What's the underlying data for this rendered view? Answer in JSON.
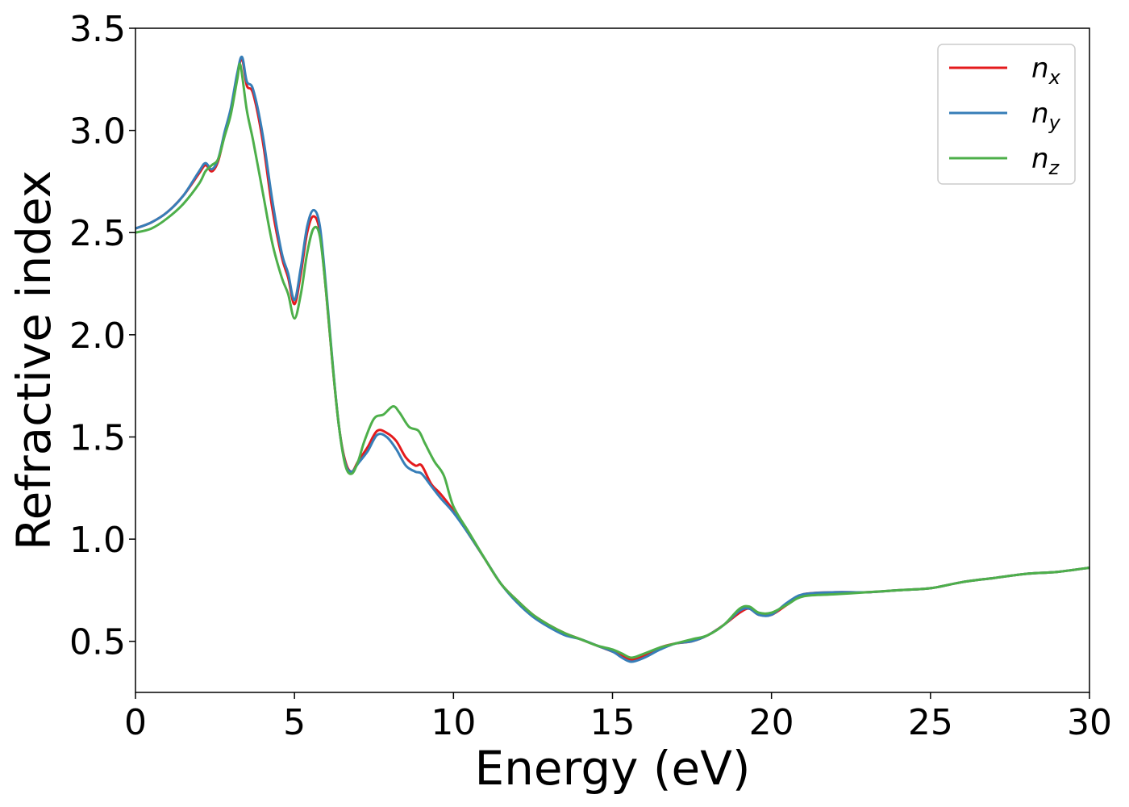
{
  "chart_data": {
    "type": "line",
    "xlabel": "Energy (eV)",
    "ylabel": "Refractive index",
    "xlim": [
      0,
      30
    ],
    "ylim": [
      0.25,
      3.5
    ],
    "xticks": [
      "0",
      "5",
      "10",
      "15",
      "20",
      "25",
      "30"
    ],
    "yticks": [
      "0.5",
      "1.0",
      "1.5",
      "2.0",
      "2.5",
      "3.0",
      "3.5"
    ],
    "grid": false,
    "legend_position": "top-right",
    "series": [
      {
        "name": "n_x",
        "legend": {
          "base": "n",
          "sub": "x"
        },
        "color": "#e41a1c",
        "x": [
          0,
          0.5,
          1.0,
          1.5,
          2.0,
          2.2,
          2.4,
          2.6,
          2.8,
          3.0,
          3.2,
          3.35,
          3.5,
          3.7,
          4.0,
          4.3,
          4.6,
          4.8,
          5.0,
          5.2,
          5.4,
          5.6,
          5.8,
          6.0,
          6.2,
          6.4,
          6.6,
          6.8,
          7.0,
          7.3,
          7.6,
          7.9,
          8.2,
          8.5,
          8.8,
          9.0,
          9.3,
          9.6,
          10.0,
          10.5,
          11.0,
          11.5,
          12.0,
          12.5,
          13.0,
          13.5,
          14.0,
          14.5,
          15.0,
          15.3,
          15.6,
          16.0,
          16.5,
          17.0,
          17.5,
          18.0,
          18.5,
          19.0,
          19.3,
          19.6,
          20.0,
          20.5,
          21.0,
          22.0,
          23.0,
          24.0,
          25.0,
          26.0,
          27.0,
          28.0,
          29.0,
          30.0
        ],
        "y": [
          2.52,
          2.55,
          2.6,
          2.68,
          2.79,
          2.83,
          2.8,
          2.85,
          2.98,
          3.1,
          3.27,
          3.35,
          3.22,
          3.18,
          2.95,
          2.62,
          2.38,
          2.28,
          2.15,
          2.3,
          2.5,
          2.58,
          2.5,
          2.2,
          1.85,
          1.55,
          1.38,
          1.33,
          1.38,
          1.45,
          1.53,
          1.52,
          1.48,
          1.4,
          1.36,
          1.36,
          1.27,
          1.22,
          1.14,
          1.02,
          0.9,
          0.78,
          0.7,
          0.63,
          0.58,
          0.54,
          0.51,
          0.48,
          0.45,
          0.43,
          0.41,
          0.43,
          0.47,
          0.49,
          0.5,
          0.53,
          0.58,
          0.64,
          0.66,
          0.63,
          0.63,
          0.68,
          0.73,
          0.74,
          0.74,
          0.75,
          0.76,
          0.79,
          0.81,
          0.83,
          0.84,
          0.86
        ]
      },
      {
        "name": "n_y",
        "legend": {
          "base": "n",
          "sub": "y"
        },
        "color": "#377eb8",
        "x": [
          0,
          0.5,
          1.0,
          1.5,
          2.0,
          2.2,
          2.4,
          2.6,
          2.8,
          3.0,
          3.2,
          3.35,
          3.5,
          3.7,
          4.0,
          4.3,
          4.6,
          4.8,
          5.0,
          5.2,
          5.4,
          5.6,
          5.8,
          6.0,
          6.2,
          6.4,
          6.6,
          6.8,
          7.0,
          7.3,
          7.6,
          7.9,
          8.2,
          8.5,
          8.8,
          9.0,
          9.3,
          9.6,
          10.0,
          10.5,
          11.0,
          11.5,
          12.0,
          12.5,
          13.0,
          13.5,
          14.0,
          14.5,
          15.0,
          15.3,
          15.6,
          16.0,
          16.5,
          17.0,
          17.5,
          18.0,
          18.5,
          19.0,
          19.3,
          19.6,
          20.0,
          20.5,
          21.0,
          22.0,
          23.0,
          24.0,
          25.0,
          26.0,
          27.0,
          28.0,
          29.0,
          30.0
        ],
        "y": [
          2.52,
          2.55,
          2.6,
          2.68,
          2.8,
          2.84,
          2.81,
          2.86,
          2.99,
          3.11,
          3.28,
          3.36,
          3.24,
          3.2,
          2.98,
          2.66,
          2.4,
          2.3,
          2.17,
          2.33,
          2.53,
          2.61,
          2.53,
          2.22,
          1.86,
          1.55,
          1.37,
          1.33,
          1.37,
          1.43,
          1.51,
          1.5,
          1.44,
          1.36,
          1.33,
          1.32,
          1.26,
          1.2,
          1.13,
          1.02,
          0.9,
          0.78,
          0.69,
          0.62,
          0.57,
          0.53,
          0.51,
          0.48,
          0.45,
          0.42,
          0.4,
          0.42,
          0.46,
          0.49,
          0.5,
          0.53,
          0.58,
          0.65,
          0.66,
          0.63,
          0.63,
          0.69,
          0.73,
          0.74,
          0.74,
          0.75,
          0.76,
          0.79,
          0.81,
          0.83,
          0.84,
          0.86
        ]
      },
      {
        "name": "n_z",
        "legend": {
          "base": "n",
          "sub": "z"
        },
        "color": "#4daf4a",
        "x": [
          0,
          0.5,
          1.0,
          1.5,
          2.0,
          2.2,
          2.4,
          2.6,
          2.8,
          3.0,
          3.2,
          3.3,
          3.5,
          3.7,
          4.0,
          4.3,
          4.6,
          4.8,
          5.0,
          5.2,
          5.4,
          5.6,
          5.8,
          6.0,
          6.2,
          6.4,
          6.6,
          6.8,
          7.0,
          7.2,
          7.5,
          7.8,
          8.1,
          8.3,
          8.6,
          8.9,
          9.1,
          9.4,
          9.7,
          10.0,
          10.5,
          11.0,
          11.5,
          12.0,
          12.5,
          13.0,
          13.5,
          14.0,
          14.5,
          15.0,
          15.3,
          15.6,
          16.0,
          16.5,
          17.0,
          17.5,
          18.0,
          18.5,
          19.0,
          19.3,
          19.6,
          20.0,
          20.5,
          21.0,
          22.0,
          23.0,
          24.0,
          25.0,
          26.0,
          27.0,
          28.0,
          29.0,
          30.0
        ],
        "y": [
          2.5,
          2.52,
          2.57,
          2.64,
          2.74,
          2.8,
          2.83,
          2.86,
          2.97,
          3.08,
          3.25,
          3.32,
          3.1,
          2.95,
          2.7,
          2.45,
          2.28,
          2.2,
          2.08,
          2.2,
          2.4,
          2.52,
          2.48,
          2.2,
          1.85,
          1.55,
          1.36,
          1.32,
          1.38,
          1.48,
          1.59,
          1.61,
          1.65,
          1.62,
          1.55,
          1.53,
          1.47,
          1.38,
          1.31,
          1.16,
          1.03,
          0.9,
          0.78,
          0.7,
          0.63,
          0.58,
          0.54,
          0.51,
          0.48,
          0.46,
          0.44,
          0.42,
          0.44,
          0.47,
          0.49,
          0.51,
          0.53,
          0.58,
          0.66,
          0.67,
          0.64,
          0.64,
          0.68,
          0.72,
          0.73,
          0.74,
          0.75,
          0.76,
          0.79,
          0.81,
          0.83,
          0.84,
          0.86
        ]
      }
    ]
  }
}
